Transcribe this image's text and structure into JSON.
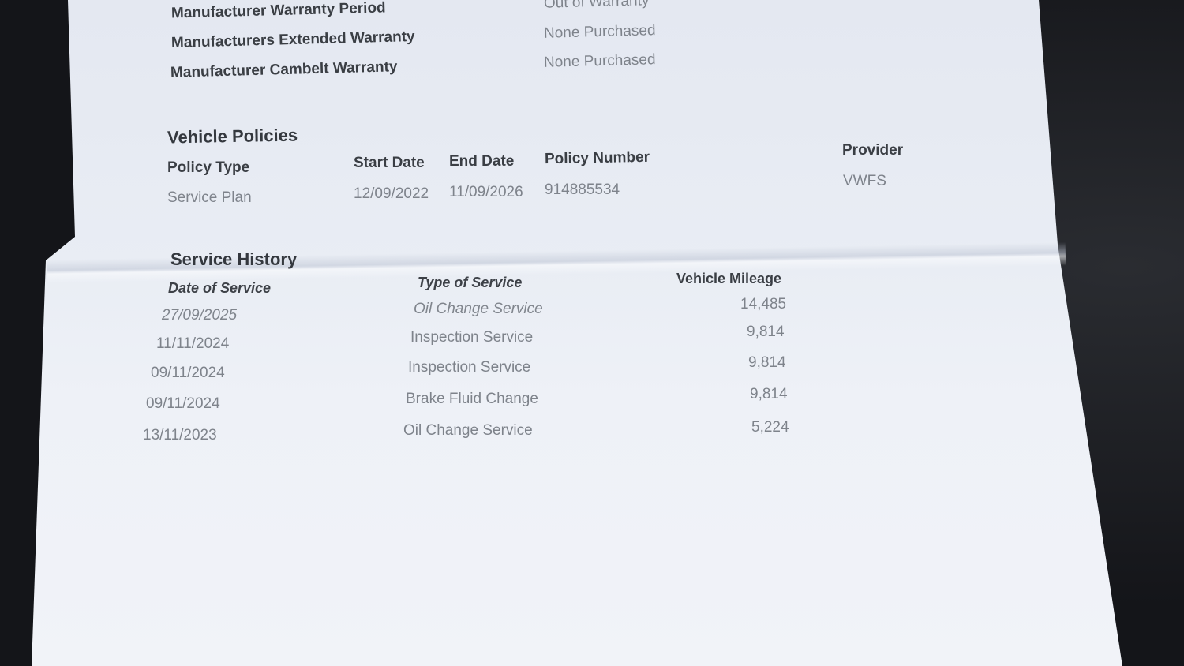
{
  "warranty": [
    {
      "label": "Manufacturer Warranty Period",
      "value": "Out of Warranty"
    },
    {
      "label": "Manufacturers Extended Warranty",
      "value": "None Purchased"
    },
    {
      "label": "Manufacturer Cambelt Warranty",
      "value": "None Purchased"
    }
  ],
  "vehicle_policies": {
    "title": "Vehicle Policies",
    "headers": [
      "Policy Type",
      "Start Date",
      "End Date",
      "Policy Number",
      "Provider"
    ],
    "rows": [
      [
        "Service Plan",
        "12/09/2022",
        "11/09/2026",
        "914885534",
        "VWFS"
      ]
    ]
  },
  "service_history": {
    "title": "Service History",
    "headers": [
      "Date of Service",
      "Type of Service",
      "Vehicle Mileage"
    ],
    "rows": [
      [
        "27/09/2025",
        "Oil Change Service",
        "14,485"
      ],
      [
        "11/11/2024",
        "Inspection Service",
        "9,814"
      ],
      [
        "09/11/2024",
        "Inspection Service",
        "9,814"
      ],
      [
        "09/11/2024",
        "Brake Fluid Change",
        "9,814"
      ],
      [
        "13/11/2023",
        "Oil Change Service",
        "5,224"
      ]
    ]
  }
}
